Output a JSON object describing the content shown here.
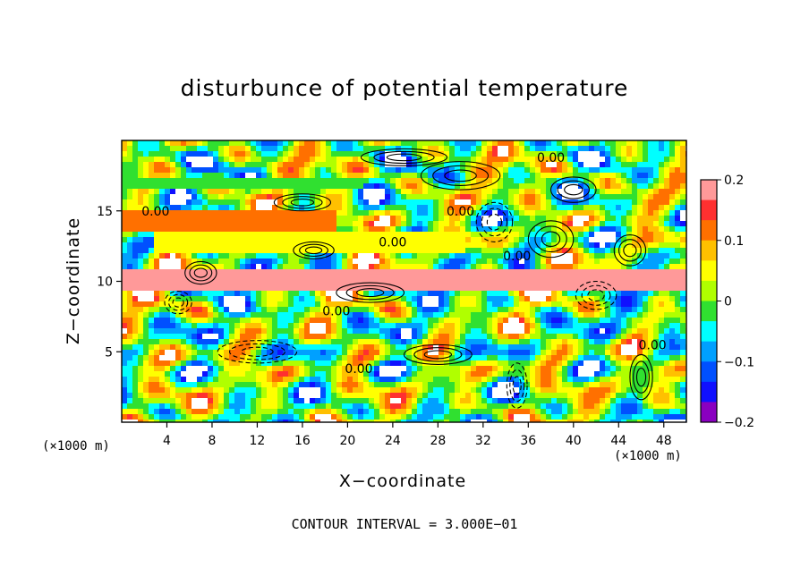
{
  "chart_data": {
    "type": "heatmap",
    "title": "disturbunce of potential temperature",
    "xlabel": "X−coordinate",
    "ylabel": "Z−coordinate",
    "x_unit": "(×1000 m)",
    "y_unit": "(×1000 m)",
    "xlim": [
      0,
      50
    ],
    "ylim": [
      0,
      20
    ],
    "x_ticks": [
      4,
      8,
      12,
      16,
      20,
      24,
      28,
      32,
      36,
      40,
      44,
      48
    ],
    "y_ticks": [
      5,
      10,
      15
    ],
    "colorbar": {
      "range": [
        -0.2,
        0.2
      ],
      "tick_values": [
        0.2,
        0.1,
        0,
        -0.1,
        -0.2
      ],
      "tick_labels": [
        "0.2",
        "0.1",
        "0",
        "−0.1",
        "−0.2"
      ],
      "colors": [
        "#ff9999",
        "#ff3030",
        "#ff7000",
        "#ffc000",
        "#ffff00",
        "#b0ff00",
        "#30e030",
        "#00ffff",
        "#00a0ff",
        "#0050ff",
        "#1010ff",
        "#8a00c0"
      ]
    },
    "contour_labels": [
      {
        "x": 3.0,
        "z": 15.0,
        "text": "0.00"
      },
      {
        "x": 19.0,
        "z": 7.9,
        "text": "0.00"
      },
      {
        "x": 24.0,
        "z": 12.8,
        "text": "0.00"
      },
      {
        "x": 30.0,
        "z": 15.0,
        "text": "0.00"
      },
      {
        "x": 35.0,
        "z": 11.8,
        "text": "0.00"
      },
      {
        "x": 38.0,
        "z": 18.8,
        "text": "0.00"
      },
      {
        "x": 47.0,
        "z": 5.5,
        "text": "0.00"
      },
      {
        "x": 21.0,
        "z": 3.8,
        "text": "0.00"
      }
    ],
    "contour_interval_text": "CONTOUR INTERVAL = 3.000E−01"
  }
}
